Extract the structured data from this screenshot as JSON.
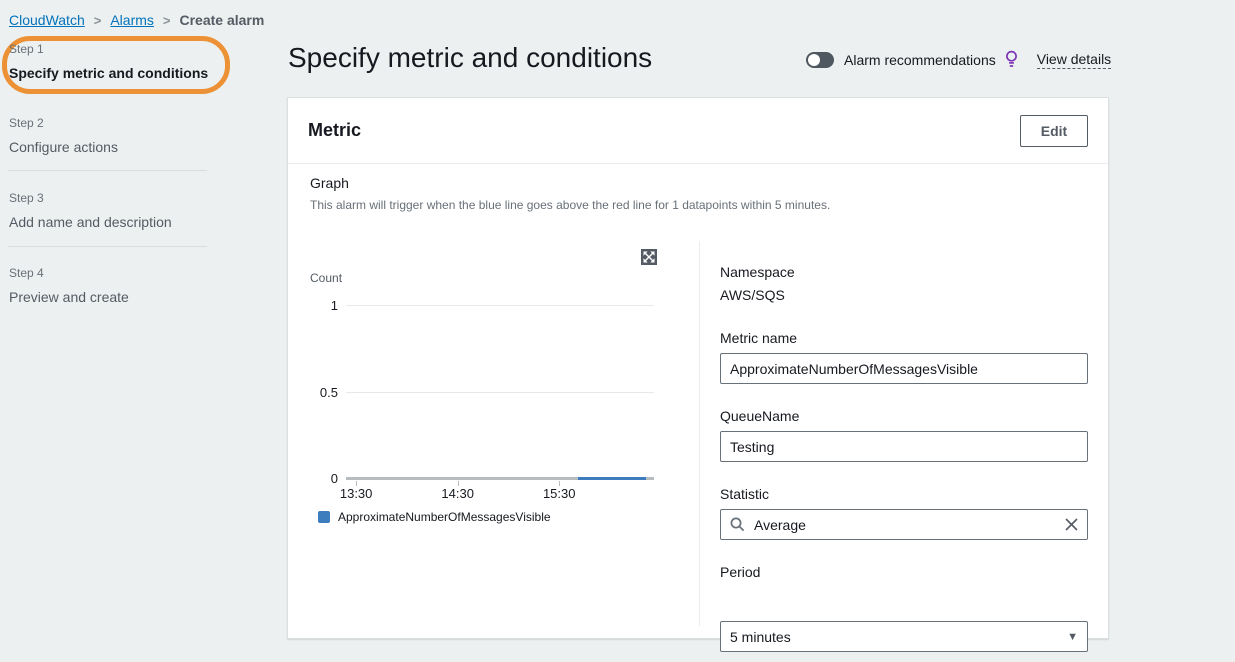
{
  "breadcrumb": {
    "separator": ">",
    "items": [
      {
        "label": "CloudWatch"
      },
      {
        "label": "Alarms"
      },
      {
        "label": "Create alarm"
      }
    ]
  },
  "sidebar": {
    "steps": [
      {
        "step": "Step 1",
        "title": "Specify metric and conditions"
      },
      {
        "step": "Step 2",
        "title": "Configure actions"
      },
      {
        "step": "Step 3",
        "title": "Add name and description"
      },
      {
        "step": "Step 4",
        "title": "Preview and create"
      }
    ]
  },
  "header": {
    "title": "Specify metric and conditions",
    "alarm_recommendations_label": "Alarm recommendations",
    "view_details_label": "View details"
  },
  "metric_panel": {
    "title": "Metric",
    "edit_button_label": "Edit",
    "graph_label": "Graph",
    "graph_description": "This alarm will trigger when the blue line goes above the red line for 1 datapoints within 5 minutes.",
    "fields": {
      "namespace_label": "Namespace",
      "namespace_value": "AWS/SQS",
      "metric_name_label": "Metric name",
      "metric_name_value": "ApproximateNumberOfMessagesVisible",
      "queue_name_label": "QueueName",
      "queue_name_value": "Testing",
      "statistic_label": "Statistic",
      "statistic_value": "Average",
      "period_label": "Period",
      "period_value": "5 minutes"
    }
  },
  "chart_data": {
    "type": "line",
    "title": "",
    "xlabel": "",
    "ylabel": "Count",
    "ylim": [
      0,
      1
    ],
    "yticks": [
      1,
      0.5,
      0
    ],
    "xticks": [
      "13:30",
      "14:30",
      "15:30"
    ],
    "x_range": [
      "13:24",
      "16:26"
    ],
    "grid": true,
    "legend_position": "bottom",
    "series": [
      {
        "name": "ApproximateNumberOfMessagesVisible",
        "color": "#3d7dbd",
        "points": [
          {
            "x": "15:41",
            "y": 0
          },
          {
            "x": "16:21",
            "y": 0
          }
        ]
      }
    ]
  },
  "colors": {
    "link_blue": "#0073bb",
    "annotation_orange": "#ec9136",
    "chart_blue": "#3d7dbd",
    "lightbulb_purple": "#7d35b5",
    "page_background": "#edf0f0",
    "panel_background": "#ffffff"
  }
}
